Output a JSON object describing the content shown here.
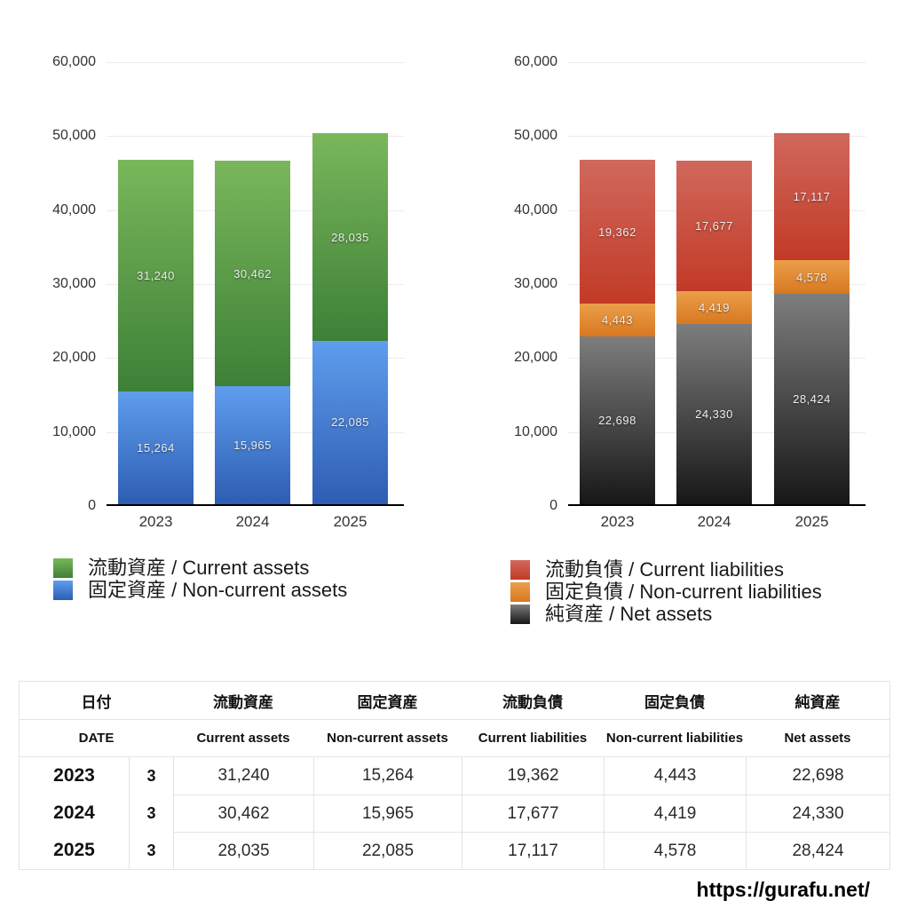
{
  "chart_data": [
    {
      "id": "assets",
      "type": "bar",
      "stacked": true,
      "title": "",
      "xlabel": "",
      "ylabel": "",
      "categories": [
        "2023",
        "2024",
        "2025"
      ],
      "series": [
        {
          "name": "流動資産 / Current assets",
          "values": [
            31240,
            30462,
            28035
          ],
          "color_top": "#7ab75b",
          "color_bottom": "#3d8037"
        },
        {
          "name": "固定資産 / Non-current assets",
          "values": [
            15264,
            15965,
            22085
          ],
          "color_top": "#5f9ded",
          "color_bottom": "#2d5db2"
        }
      ],
      "stack_order": "first-series-on-top",
      "ylim": [
        0,
        60000
      ],
      "ytick_step": 10000,
      "ytick_labels": [
        "0",
        "10,000",
        "20,000",
        "30,000",
        "40,000",
        "50,000",
        "60,000"
      ],
      "grid": true,
      "bar_value_labels": true,
      "legend_position": "bottom-left"
    },
    {
      "id": "liabilities",
      "type": "bar",
      "stacked": true,
      "title": "",
      "xlabel": "",
      "ylabel": "",
      "categories": [
        "2023",
        "2024",
        "2025"
      ],
      "series": [
        {
          "name": "流動負債 / Current liabilities",
          "values": [
            19362,
            17677,
            17117
          ],
          "color_top": "#d0685c",
          "color_bottom": "#c23a26"
        },
        {
          "name": "固定負債 / Non-current liabilities",
          "values": [
            4443,
            4419,
            4578
          ],
          "color_top": "#eb9e49",
          "color_bottom": "#d87821"
        },
        {
          "name": "純資産 / Net assets",
          "values": [
            22698,
            24330,
            28424
          ],
          "color_top": "#7d7d7d",
          "color_bottom": "#171717"
        }
      ],
      "stack_order": "first-series-on-top",
      "ylim": [
        0,
        60000
      ],
      "ytick_step": 10000,
      "ytick_labels": [
        "0",
        "10,000",
        "20,000",
        "30,000",
        "40,000",
        "50,000",
        "60,000"
      ],
      "grid": true,
      "bar_value_labels": true,
      "legend_position": "bottom-left"
    }
  ],
  "table": {
    "header_jp": [
      "日付",
      "流動資産",
      "固定資産",
      "流動負債",
      "固定負債",
      "純資産"
    ],
    "header_en": [
      "DATE",
      "Current assets",
      "Non-current assets",
      "Current liabilities",
      "Non-current liabilities",
      "Net assets"
    ],
    "rows": [
      {
        "year": "2023",
        "month": "3",
        "values": [
          "31,240",
          "15,264",
          "19,362",
          "4,443",
          "22,698"
        ]
      },
      {
        "year": "2024",
        "month": "3",
        "values": [
          "30,462",
          "15,965",
          "17,677",
          "4,419",
          "24,330"
        ]
      },
      {
        "year": "2025",
        "month": "3",
        "values": [
          "28,035",
          "22,085",
          "17,117",
          "4,578",
          "28,424"
        ]
      }
    ]
  },
  "watermark": {
    "url": "https://gurafu.net/"
  }
}
